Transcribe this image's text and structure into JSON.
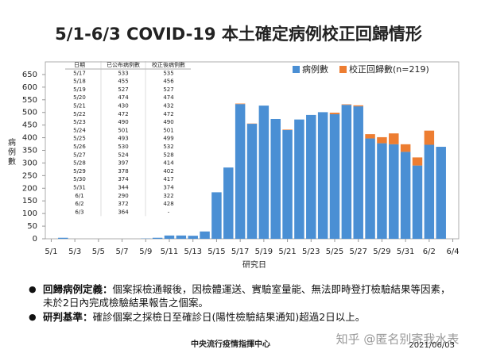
{
  "chart_data": {
    "type": "stacked_bar",
    "title": "5/1-6/3 COVID-19 本土確定病例校正回歸情形",
    "y_label": "病例數",
    "x_label": "研究日",
    "categories": [
      "5/1",
      null,
      "5/3",
      null,
      "5/5",
      null,
      "5/7",
      null,
      "5/9",
      null,
      "5/11",
      null,
      "5/13",
      null,
      "5/15",
      null,
      "5/17",
      null,
      "5/19",
      null,
      "5/21",
      null,
      "5/23",
      null,
      "5/25",
      null,
      "5/27",
      null,
      "5/29",
      null,
      "5/31",
      null,
      "6/2",
      null,
      "6/4"
    ],
    "series": [
      {
        "name": "病例數",
        "color": "#4a8fd4",
        "values": [
          0,
          4,
          0,
          0,
          0,
          0,
          0,
          0,
          1,
          4,
          13,
          13,
          12,
          29,
          184,
          282,
          533,
          455,
          527,
          474,
          430,
          472,
          490,
          501,
          493,
          530,
          524,
          397,
          378,
          374,
          344,
          290,
          372,
          364,
          null
        ]
      },
      {
        "name": "校正回歸數(n=219)",
        "color": "#ed7d31",
        "values": [
          0,
          0,
          0,
          0,
          0,
          0,
          0,
          0,
          0,
          0,
          0,
          0,
          0,
          0,
          0,
          0,
          2,
          1,
          0,
          0,
          2,
          0,
          0,
          0,
          6,
          2,
          4,
          17,
          24,
          43,
          30,
          32,
          56,
          null,
          null
        ]
      }
    ],
    "ylim": [
      0,
      700
    ],
    "yticks": [
      0,
      50,
      100,
      150,
      200,
      250,
      300,
      350,
      400,
      450,
      500,
      550,
      600,
      650
    ],
    "legend": "top-right"
  },
  "table": {
    "header": [
      "日期",
      "已公布病例數",
      "校正後病例數"
    ],
    "rows": [
      [
        "5/17",
        "533",
        "535"
      ],
      [
        "5/18",
        "455",
        "456"
      ],
      [
        "5/19",
        "527",
        "527"
      ],
      [
        "5/20",
        "474",
        "474"
      ],
      [
        "5/21",
        "430",
        "432"
      ],
      [
        "5/22",
        "472",
        "472"
      ],
      [
        "5/23",
        "490",
        "490"
      ],
      [
        "5/24",
        "501",
        "501"
      ],
      [
        "5/25",
        "493",
        "499"
      ],
      [
        "5/26",
        "530",
        "532"
      ],
      [
        "5/27",
        "524",
        "528"
      ],
      [
        "5/28",
        "397",
        "414"
      ],
      [
        "5/29",
        "378",
        "402"
      ],
      [
        "5/30",
        "374",
        "417"
      ],
      [
        "5/31",
        "344",
        "374"
      ],
      [
        "6/1",
        "290",
        "322"
      ],
      [
        "6/2",
        "372",
        "428"
      ],
      [
        "6/3",
        "364",
        "-"
      ]
    ]
  },
  "notes": [
    {
      "term": "回歸病例定義：",
      "text": "個案採檢通報後，因檢體運送、實驗室量能、無法即時登打檢驗結果等因素，未於2日內完成檢驗結果報告之個案。"
    },
    {
      "term": "研判基準：",
      "text": "確診個案之採檢日至確診日(陽性檢驗結果通知)超過2日以上。"
    }
  ],
  "footer": {
    "source": "中央流行疫情指揮中心",
    "date": "2021/06/03",
    "watermark": "知乎 @匿名别寄我水表"
  }
}
